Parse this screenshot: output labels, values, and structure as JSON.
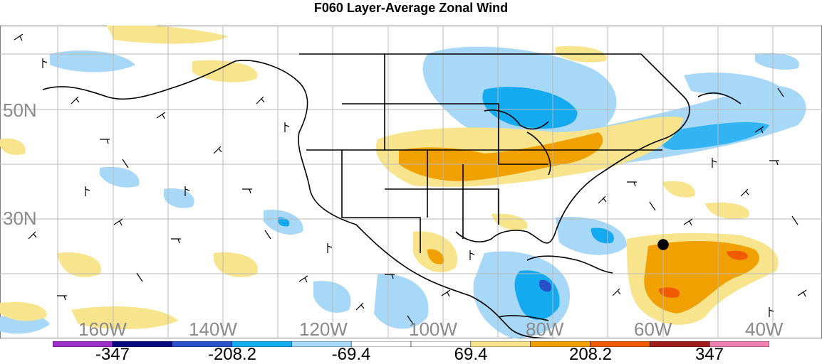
{
  "title": "F060 Layer-Average Zonal Wind",
  "map": {
    "lat_labels": [
      "50N",
      "30N"
    ],
    "lon_labels": [
      "160W",
      "140W",
      "120W",
      "100W",
      "80W",
      "60W",
      "40W"
    ],
    "label_color": "#8a8a8a"
  },
  "colorbar": {
    "colors": [
      "#9b30c8",
      "#0a0a80",
      "#2850c8",
      "#14aaf0",
      "#a8d8f8",
      "#ffffff",
      "#ffffff",
      "#f8e48c",
      "#f0a000",
      "#f05a00",
      "#a01e1e",
      "#f080b0"
    ],
    "labels": [
      "-347",
      "-208.2",
      "-69.4",
      "69.4",
      "208.2",
      "347"
    ]
  }
}
